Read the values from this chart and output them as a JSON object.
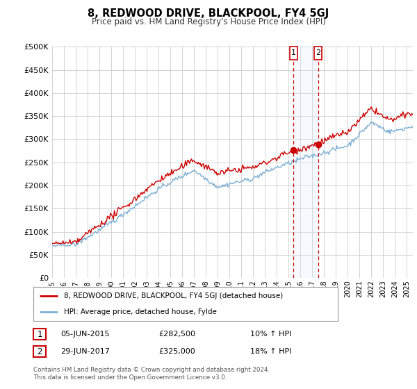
{
  "title": "8, REDWOOD DRIVE, BLACKPOOL, FY4 5GJ",
  "subtitle": "Price paid vs. HM Land Registry's House Price Index (HPI)",
  "ylim": [
    0,
    500000
  ],
  "yticks": [
    0,
    50000,
    100000,
    150000,
    200000,
    250000,
    300000,
    350000,
    400000,
    450000,
    500000
  ],
  "hpi_color": "#7bafd4",
  "price_color": "#cc0000",
  "annotation_color": "#cc0000",
  "background_color": "#ffffff",
  "plot_bg_color": "#ffffff",
  "grid_color": "#cccccc",
  "shade_color": "#ddeeff",
  "transaction1": {
    "date": "05-JUN-2015",
    "price": 282500,
    "hpi_change": "10%",
    "direction": "↑",
    "x": 2015.42
  },
  "transaction2": {
    "date": "29-JUN-2017",
    "price": 325000,
    "hpi_change": "18%",
    "direction": "↑",
    "x": 2017.49
  },
  "legend_label1": "8, REDWOOD DRIVE, BLACKPOOL, FY4 5GJ (detached house)",
  "legend_label2": "HPI: Average price, detached house, Fylde",
  "footnote": "Contains HM Land Registry data © Crown copyright and database right 2024.\nThis data is licensed under the Open Government Licence v3.0.",
  "xmin": 1995,
  "xmax": 2025.5
}
